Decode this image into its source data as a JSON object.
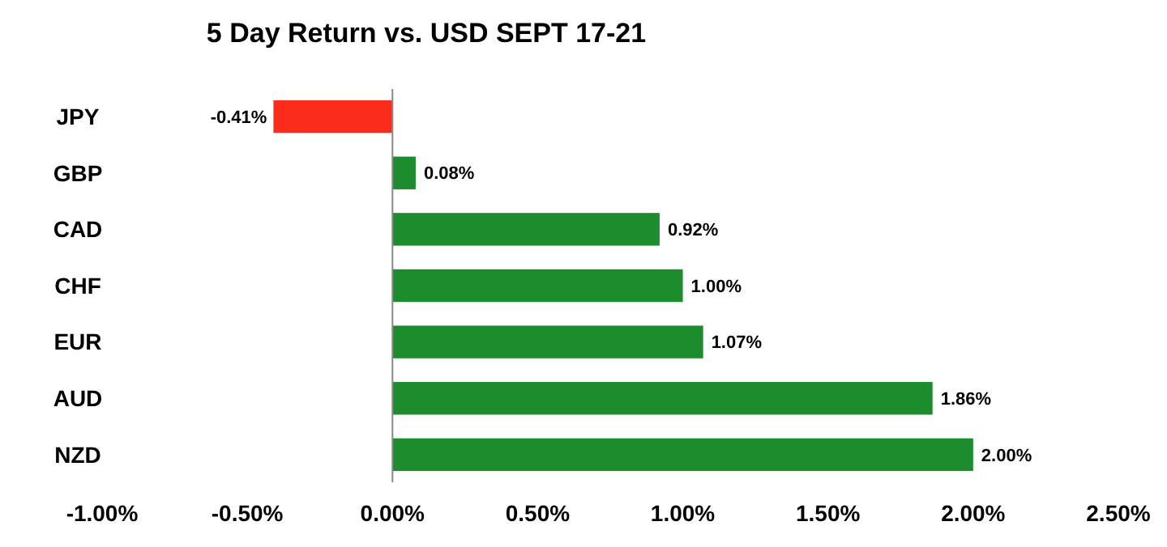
{
  "chart_data": {
    "type": "bar",
    "orientation": "horizontal",
    "title": "5 Day Return vs. USD SEPT 17-21",
    "categories": [
      "JPY",
      "GBP",
      "CAD",
      "CHF",
      "EUR",
      "AUD",
      "NZD"
    ],
    "values": [
      -0.41,
      0.08,
      0.92,
      1.0,
      1.07,
      1.86,
      2.0
    ],
    "colors": [
      "#fb2c1c",
      "#1c8c2c",
      "#1c8c2c",
      "#1c8c2c",
      "#1c8c2c",
      "#1c8c2c",
      "#1c8c2c"
    ],
    "value_labels": [
      "-0.41%",
      "0.08%",
      "0.92%",
      "1.00%",
      "1.07%",
      "1.86%",
      "2.00%"
    ],
    "xlim": [
      -1,
      2.5
    ],
    "xticks": [
      {
        "value": -1,
        "label": "-1.00%"
      },
      {
        "value": -0.5,
        "label": "-0.50%"
      },
      {
        "value": 0,
        "label": "0.00%"
      },
      {
        "value": 0.5,
        "label": "0.50%"
      },
      {
        "value": 1,
        "label": "1.00%"
      },
      {
        "value": 1.5,
        "label": "1.50%"
      },
      {
        "value": 2,
        "label": "2.00%"
      },
      {
        "value": 2.5,
        "label": "2.50%"
      }
    ],
    "xlabel": null
  }
}
